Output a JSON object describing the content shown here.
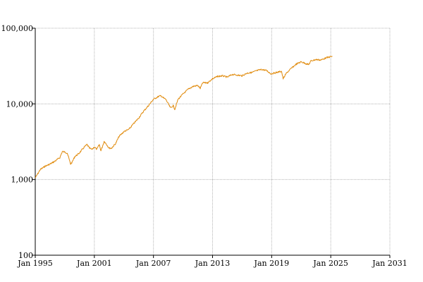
{
  "chart_data": {
    "type": "line",
    "title": "",
    "xlabel": "",
    "ylabel": "",
    "y_scale": "log",
    "ylim": [
      100,
      100000
    ],
    "xlim": [
      "1995-01",
      "2031-01"
    ],
    "grid": true,
    "series_color": "#e08a0b",
    "x_ticks": [
      {
        "value": "1995-01",
        "label": "Jan 1995"
      },
      {
        "value": "2001-01",
        "label": "Jan 2001"
      },
      {
        "value": "2007-01",
        "label": "Jan 2007"
      },
      {
        "value": "2013-01",
        "label": "Jan 2013"
      },
      {
        "value": "2019-01",
        "label": "Jan 2019"
      },
      {
        "value": "2025-01",
        "label": "Jan 2025"
      },
      {
        "value": "2031-01",
        "label": "Jan 2031"
      }
    ],
    "y_ticks": [
      {
        "value": 100,
        "label": "100"
      },
      {
        "value": 1000,
        "label": "1,000"
      },
      {
        "value": 10000,
        "label": "10,000"
      },
      {
        "value": 100000,
        "label": "100,000"
      }
    ],
    "series": [
      {
        "x": [
          "1995-01",
          "1995-07",
          "1996-01",
          "1996-07",
          "1997-01",
          "1997-07",
          "1997-10",
          "1998-01",
          "1998-04",
          "1998-08",
          "1998-10",
          "1999-01",
          "1999-06",
          "2000-01",
          "2000-04",
          "2000-07",
          "2000-10",
          "2001-01",
          "2001-04",
          "2001-07",
          "2001-09",
          "2002-01",
          "2002-04",
          "2002-07",
          "2002-10",
          "2003-03",
          "2003-07",
          "2004-01",
          "2004-07",
          "2005-01",
          "2005-07",
          "2006-01",
          "2006-07",
          "2007-01",
          "2007-04",
          "2007-07",
          "2007-10",
          "2008-01",
          "2008-04",
          "2008-07",
          "2008-10",
          "2009-01",
          "2009-03",
          "2009-07",
          "2010-01",
          "2010-07",
          "2011-01",
          "2011-07",
          "2011-10",
          "2012-01",
          "2012-07",
          "2013-01",
          "2013-07",
          "2014-01",
          "2014-07",
          "2015-01",
          "2015-07",
          "2016-01",
          "2016-07",
          "2017-01",
          "2017-07",
          "2018-01",
          "2018-07",
          "2018-12",
          "2019-07",
          "2020-01",
          "2020-03",
          "2020-07",
          "2021-01",
          "2021-07",
          "2022-01",
          "2022-07",
          "2022-10",
          "2023-01",
          "2023-07",
          "2024-01",
          "2024-07",
          "2025-01",
          "2025-03"
        ],
        "y": [
          1050,
          1350,
          1500,
          1600,
          1750,
          1950,
          2350,
          2300,
          2250,
          1600,
          1700,
          2000,
          2200,
          2700,
          2900,
          2600,
          2500,
          2700,
          2500,
          2900,
          2400,
          3200,
          2900,
          2600,
          2600,
          3000,
          3700,
          4300,
          4600,
          5500,
          6500,
          8000,
          9500,
          11500,
          12000,
          12500,
          12800,
          12000,
          11500,
          10000,
          8800,
          9500,
          8500,
          11500,
          13500,
          15500,
          17000,
          17500,
          16000,
          19000,
          19000,
          21500,
          23000,
          23500,
          22500,
          24500,
          24000,
          23500,
          25500,
          26000,
          27500,
          28500,
          27500,
          25000,
          26000,
          27000,
          21500,
          25500,
          29500,
          33500,
          36000,
          34000,
          33000,
          37000,
          38500,
          38000,
          40500,
          42000,
          42500
        ]
      }
    ]
  }
}
